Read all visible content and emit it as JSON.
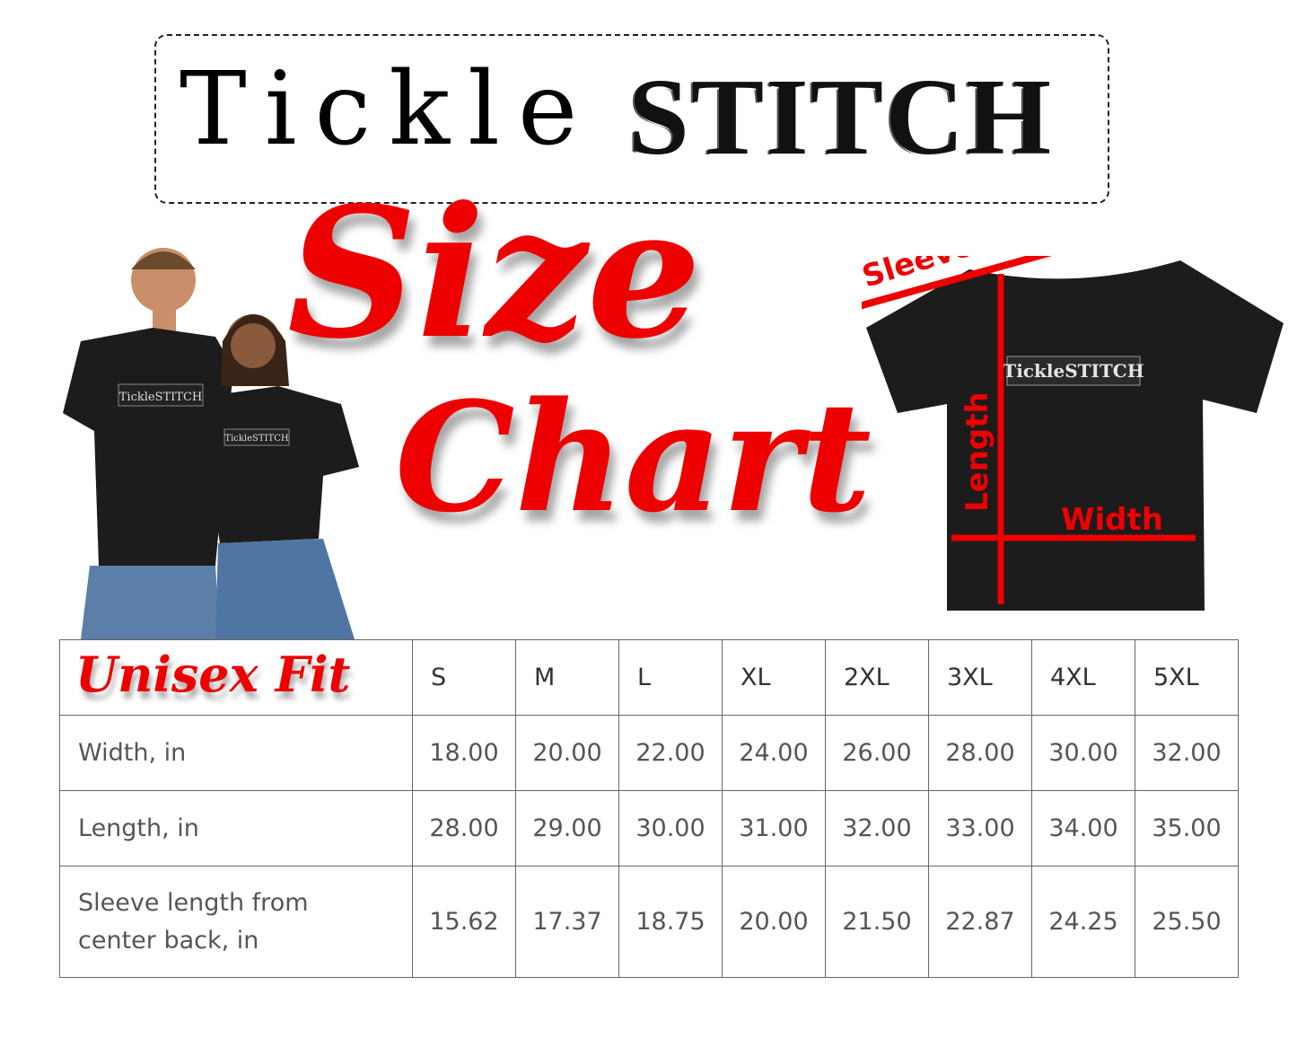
{
  "brand": {
    "logo_text": "TickleSTITCH",
    "logo_part1": "Tickle",
    "logo_part2": "STITCH"
  },
  "title": {
    "line1": "Size",
    "line2": "Chart"
  },
  "people": {
    "shirt_logo": "TickleSTITCH"
  },
  "diagram": {
    "sleeve": "Sleeve",
    "length": "Length",
    "width": "Width",
    "shirt_logo": "TickleSTITCH"
  },
  "colors": {
    "accent": "#e00000",
    "shirt": "#1c1c1c",
    "table_border": "#666666"
  },
  "table": {
    "corner_label": "Unisex Fit",
    "sizes": [
      "S",
      "M",
      "L",
      "XL",
      "2XL",
      "3XL",
      "4XL",
      "5XL"
    ],
    "rows": [
      {
        "label": "Width, in",
        "values": [
          "18.00",
          "20.00",
          "22.00",
          "24.00",
          "26.00",
          "28.00",
          "30.00",
          "32.00"
        ]
      },
      {
        "label": "Length, in",
        "values": [
          "28.00",
          "29.00",
          "30.00",
          "31.00",
          "32.00",
          "33.00",
          "34.00",
          "35.00"
        ]
      },
      {
        "label": "Sleeve length from center back, in",
        "values": [
          "15.62",
          "17.37",
          "18.75",
          "20.00",
          "21.50",
          "22.87",
          "24.25",
          "25.50"
        ]
      }
    ]
  }
}
